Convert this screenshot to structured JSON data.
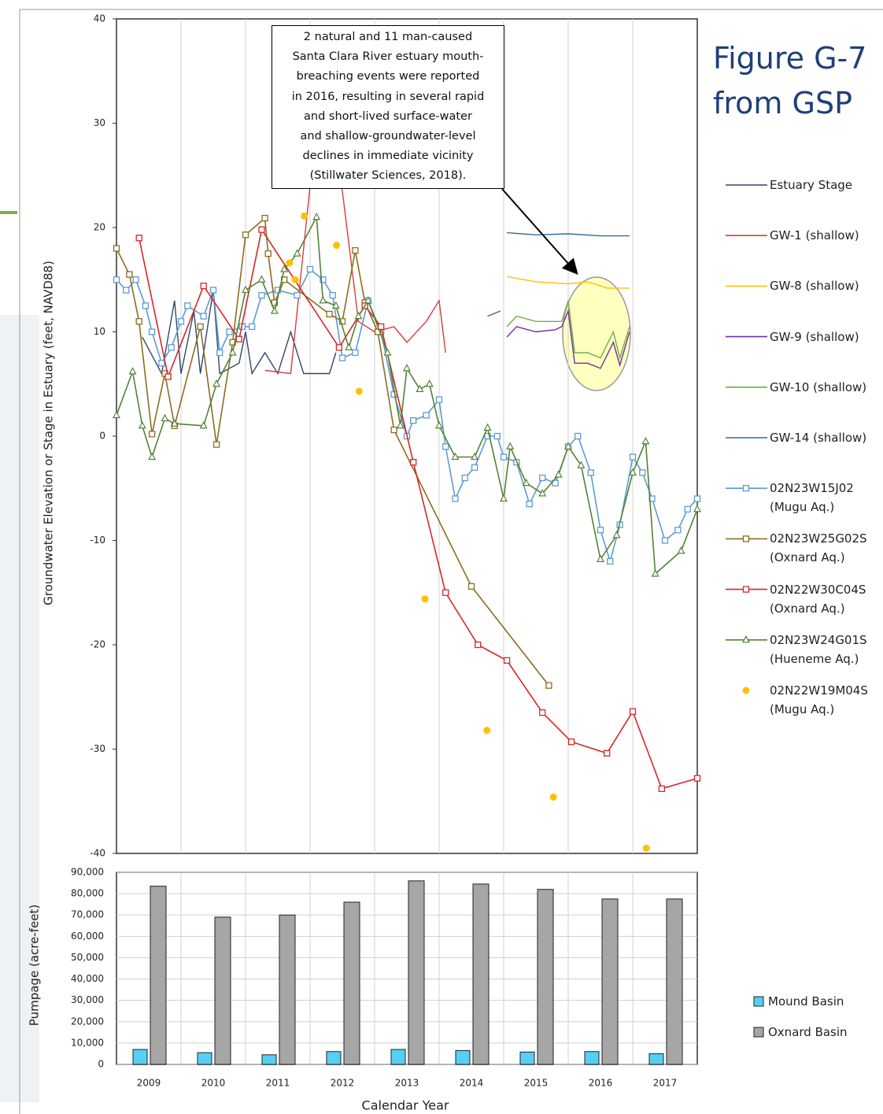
{
  "chart_data": [
    {
      "type": "line",
      "title": "Figure G-7 from GSP",
      "ylabel": "Groundwater Elevation or Stage in Estuary (feet, NAVD88)",
      "annotation_lines": [
        "2 natural and 11 man-caused",
        "Santa Clara River estuary mouth-",
        "breaching events were reported",
        "in 2016, resulting in several rapid",
        "and short-lived surface-water",
        "and shallow-groundwater-level",
        "declines in immediate vicinity",
        "(Stillwater Sciences, 2018)."
      ],
      "xlim": [
        2009,
        2018
      ],
      "ylim": [
        -40,
        40
      ],
      "yticks": [
        -40,
        -30,
        -20,
        -10,
        0,
        10,
        20,
        30,
        40
      ],
      "xgrid": true,
      "series": [
        {
          "name": "Estuary Stage",
          "color": "#34466a",
          "marker": null,
          "line": true,
          "x": [
            2009.4,
            2009.7,
            2009.9,
            2010.0,
            2010.2,
            2010.3,
            2010.5,
            2010.6,
            2010.9,
            2011.0,
            2011.1,
            2011.3,
            2011.5,
            2011.7,
            2011.9,
            2012.3,
            2012.4
          ],
          "values": [
            9.5,
            6,
            13,
            6,
            12,
            6,
            14,
            6,
            7,
            10,
            6,
            8,
            6,
            10,
            6,
            6,
            8
          ]
        },
        {
          "name": "GW-1 (shallow)",
          "color": "#e03a3a",
          "marker": null,
          "line": true,
          "x": [
            2011.3,
            2011.7,
            2012.0,
            2012.45,
            2012.75,
            2013.0,
            2013.3,
            2013.5,
            2013.8,
            2014.0,
            2014.1
          ],
          "values": [
            6.3,
            6,
            24,
            26,
            11,
            10,
            10.5,
            9,
            11,
            13,
            8
          ]
        },
        {
          "name": "GW-8 (shallow)",
          "color": "#ffc000",
          "marker": null,
          "line": true,
          "x": [
            2015.05,
            2015.5,
            2016.0,
            2016.3,
            2016.6,
            2016.95
          ],
          "values": [
            15.3,
            14.8,
            14.6,
            14.8,
            14.2,
            14.2
          ]
        },
        {
          "name": "GW-9 (shallow)",
          "color": "#7030a0",
          "marker": null,
          "line": true,
          "x": [
            2015.05,
            2015.2,
            2015.5,
            2015.8,
            2015.9,
            2016.0,
            2016.1,
            2016.3,
            2016.5,
            2016.7,
            2016.8,
            2016.95
          ],
          "values": [
            9.5,
            10.5,
            10,
            10.2,
            10.5,
            12,
            7,
            7,
            6.5,
            9,
            6.8,
            10
          ]
        },
        {
          "name": "GW-10 (shallow)",
          "color": "#70ad47",
          "marker": null,
          "line": true,
          "x": [
            2015.05,
            2015.2,
            2015.5,
            2015.9,
            2016.0,
            2016.1,
            2016.3,
            2016.5,
            2016.7,
            2016.8,
            2016.95
          ],
          "values": [
            10.5,
            11.5,
            11,
            11,
            13,
            8,
            8,
            7.5,
            10,
            7.5,
            10.5
          ]
        },
        {
          "name": "GW-14 (shallow)",
          "color": "#2e6aa5",
          "marker": null,
          "line": true,
          "x": [
            2014.75,
            2014.95,
            2015.0,
            2015.05,
            2015.5,
            2016.0,
            2016.5,
            2016.95
          ],
          "values": [
            11.5,
            12,
            null,
            19.5,
            19.3,
            19.4,
            19.2,
            19.2
          ]
        },
        {
          "name": "02N23W15J02 (Mugu Aq.)",
          "color": "#5b9bd5",
          "marker": "square",
          "line": true,
          "x": [
            2009.0,
            2009.15,
            2009.3,
            2009.45,
            2009.55,
            2009.7,
            2009.85,
            2010.0,
            2010.1,
            2010.35,
            2010.5,
            2010.6,
            2010.75,
            2010.95,
            2011.1,
            2011.25,
            2011.5,
            2011.8,
            2012.0,
            2012.2,
            2012.35,
            2012.5,
            2012.7,
            2012.9,
            2013.1,
            2013.3,
            2013.5,
            2013.6,
            2013.8,
            2014.0,
            2014.1,
            2014.25,
            2014.4,
            2014.55,
            2014.75,
            2014.9,
            2015.0,
            2015.2,
            2015.4,
            2015.6,
            2015.8,
            2016.0,
            2016.15,
            2016.35,
            2016.5,
            2016.65,
            2016.8,
            2017.0,
            2017.15,
            2017.3,
            2017.5,
            2017.7,
            2017.85,
            2018.0
          ],
          "values": [
            15,
            14,
            15,
            12.5,
            10,
            7,
            8.5,
            11,
            12.5,
            11.5,
            14,
            8,
            10,
            10.5,
            10.5,
            13.5,
            14,
            13.5,
            16,
            15,
            13.5,
            7.5,
            8,
            13,
            10,
            4,
            0,
            1.5,
            2,
            3.5,
            -1,
            -6,
            -4,
            -3,
            0,
            0,
            -2,
            -2.5,
            -6.5,
            -4,
            -4.5,
            -1,
            0,
            -3.5,
            -9,
            -12,
            -8.5,
            -2,
            -3.5,
            -6,
            -10,
            -9,
            -7,
            -6
          ]
        },
        {
          "name": "02N23W25G02S (Oxnard Aq.)",
          "color": "#8c6d1f",
          "marker": "square",
          "line": true,
          "x": [
            2009.0,
            2009.2,
            2009.35,
            2009.55,
            2009.75,
            2009.9,
            2010.3,
            2010.55,
            2010.8,
            2011.0,
            2011.3,
            2011.35,
            2011.45,
            2011.6,
            2012.3,
            2012.5,
            2012.7,
            2012.85,
            2013.05,
            2013.3,
            2014.5,
            2015.7
          ],
          "values": [
            18,
            15.5,
            11,
            0.2,
            6,
            1,
            10.5,
            -0.8,
            9,
            19.3,
            20.9,
            17.5,
            12.8,
            15,
            11.7,
            11,
            17.8,
            12.8,
            10,
            0.6,
            -14.4,
            -23.9
          ]
        },
        {
          "name": "02N22W30C04S (Oxnard Aq.)",
          "color": "#d62728",
          "marker": "square",
          "line": true,
          "x": [
            2009.35,
            2009.8,
            2010.35,
            2010.9,
            2011.25,
            2012.45,
            2012.85,
            2013.1,
            2013.6,
            2014.1,
            2014.6,
            2015.05,
            2015.6,
            2016.05,
            2016.6,
            2017.0,
            2017.45,
            2018.0
          ],
          "values": [
            19,
            5.7,
            14.4,
            9.3,
            19.8,
            8.5,
            12.5,
            10.5,
            -2.5,
            -15,
            -20,
            -21.5,
            -26.5,
            -29.3,
            -30.4,
            -26.4,
            -33.8,
            -32.8
          ]
        },
        {
          "name": "02N23W24G01S (Hueneme Aq.)",
          "color": "#548235",
          "marker": "triangle",
          "line": true,
          "x": [
            2009.0,
            2009.25,
            2009.4,
            2009.55,
            2009.75,
            2009.9,
            2010.35,
            2010.55,
            2010.8,
            2011.0,
            2011.25,
            2011.45,
            2011.6,
            2011.8,
            2012.1,
            2012.2,
            2012.4,
            2012.6,
            2012.75,
            2012.9,
            2013.2,
            2013.4,
            2013.5,
            2013.7,
            2013.85,
            2014.0,
            2014.25,
            2014.55,
            2014.75,
            2015.0,
            2015.1,
            2015.35,
            2015.6,
            2015.85,
            2016.0,
            2016.2,
            2016.5,
            2016.75,
            2017.0,
            2017.2,
            2017.35,
            2017.75,
            2018.0
          ],
          "values": [
            2,
            6.2,
            1,
            -2,
            1.7,
            1.2,
            1,
            5,
            8,
            14,
            15,
            12,
            16,
            17.5,
            21,
            13,
            12.5,
            8.5,
            11.5,
            13,
            8,
            1,
            6.5,
            4.5,
            5,
            1,
            -2,
            -2,
            0.8,
            -6,
            -1,
            -4.5,
            -5.5,
            -3.7,
            -1,
            -2.8,
            -11.8,
            -9.5,
            -3.5,
            -0.5,
            -13.2,
            -11,
            -7
          ]
        },
        {
          "name": "02N22W19M04S (Mugu Aq.)",
          "color": "#ffc000",
          "marker": "circle",
          "line": false,
          "x": [
            2011.68,
            2011.77,
            2011.91,
            2012.41,
            2012.76,
            2013.78,
            2014.74,
            2015.77,
            2017.21
          ],
          "values": [
            16.6,
            15,
            21.1,
            18.3,
            4.3,
            -15.6,
            -28.2,
            -34.6,
            -39.5
          ]
        }
      ]
    },
    {
      "type": "bar",
      "ylabel": "Pumpage (acre-feet)",
      "xlabel": "Calendar Year",
      "categories": [
        "2009",
        "2010",
        "2011",
        "2012",
        "2013",
        "2014",
        "2015",
        "2016",
        "2017"
      ],
      "ylim": [
        0,
        90000
      ],
      "yticks": [
        0,
        {
          "value": 10000,
          "label": "10,000"
        },
        {
          "value": 20000,
          "label": "20,000"
        },
        {
          "value": 30000,
          "label": "30,000"
        },
        {
          "value": 40000,
          "label": "40,000"
        },
        {
          "value": 50000,
          "label": "50,000"
        },
        {
          "value": 60000,
          "label": "60,000"
        },
        {
          "value": 70000,
          "label": "70,000"
        },
        {
          "value": 80000,
          "label": "80,000"
        },
        {
          "value": 90000,
          "label": "90,000"
        }
      ],
      "grid": true,
      "series": [
        {
          "name": "Mound Basin",
          "color": "#55d0f2",
          "values": [
            7000,
            5500,
            4500,
            6000,
            7000,
            6500,
            5800,
            6000,
            5000
          ]
        },
        {
          "name": "Oxnard Basin",
          "color": "#a6a6a6",
          "values": [
            83500,
            69000,
            70000,
            76000,
            86000,
            84500,
            82000,
            77500,
            77500
          ]
        }
      ]
    }
  ]
}
